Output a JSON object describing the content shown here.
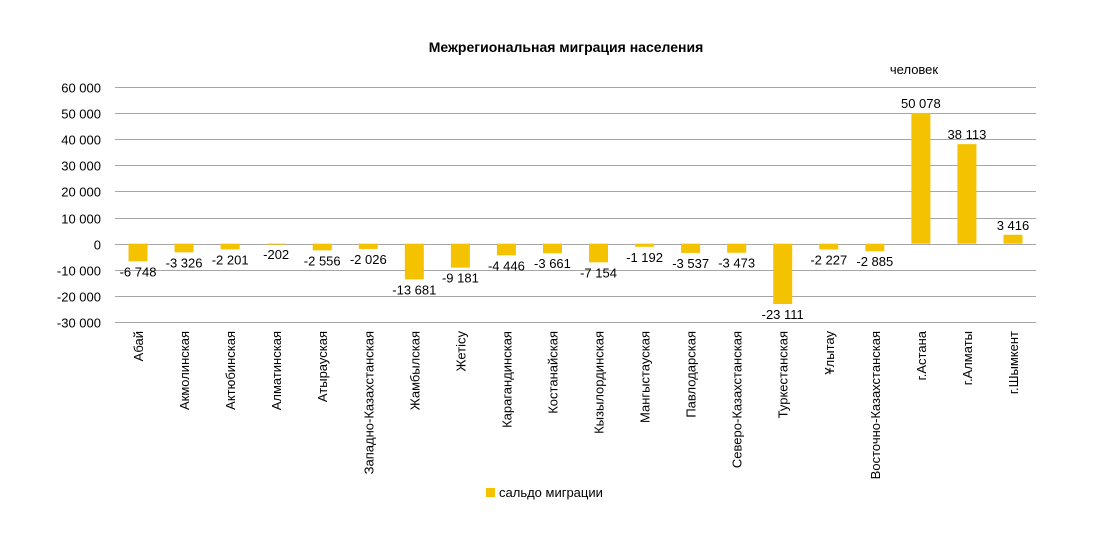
{
  "chart_data": {
    "type": "bar",
    "title": "Межрегиональная миграция населения",
    "unit": "человек",
    "categories": [
      "Абай",
      "Акмолинская",
      "Актюбинская",
      "Алматинская",
      "Атырауская",
      "Западно-Казахстанская",
      "Жамбылская",
      "Жетісу",
      "Карагандинская",
      "Костанайская",
      "Кызылординская",
      "Мангыстауская",
      "Павлодарская",
      "Северо-Казахстанская",
      "Туркестанская",
      "Ұлытау",
      "Восточно-Казахстанская",
      "г.Астана",
      "г.Алматы",
      "г.Шымкент"
    ],
    "series": [
      {
        "name": "сальдо миграции",
        "color": "#f5c200",
        "values": [
          -6748,
          -3326,
          -2201,
          -202,
          -2556,
          -2026,
          -13681,
          -9181,
          -4446,
          -3661,
          -7154,
          -1192,
          -3537,
          -3473,
          -23111,
          -2227,
          -2885,
          50078,
          38113,
          3416
        ],
        "labels": [
          "-6 748",
          "-3 326",
          "-2 201",
          "-202",
          "-2 556",
          "-2 026",
          "-13 681",
          "-9 181",
          "-4 446",
          "-3 661",
          "-7 154",
          "-1 192",
          "-3 537",
          "-3 473",
          "-23 111",
          "-2 227",
          "-2 885",
          "50 078",
          "38 113",
          "3 416"
        ]
      }
    ],
    "ylim": [
      -30000,
      60000
    ],
    "yticks": [
      60000,
      50000,
      40000,
      30000,
      20000,
      10000,
      0,
      -10000,
      -20000,
      -30000
    ],
    "ytick_labels": [
      "60 000",
      "50 000",
      "40 000",
      "30 000",
      "20 000",
      "10 000",
      "0",
      "-10 000",
      "-20 000",
      "-30 000"
    ],
    "grid": true,
    "grid_color": "#a6a6a6",
    "legend_position": "bottom"
  }
}
